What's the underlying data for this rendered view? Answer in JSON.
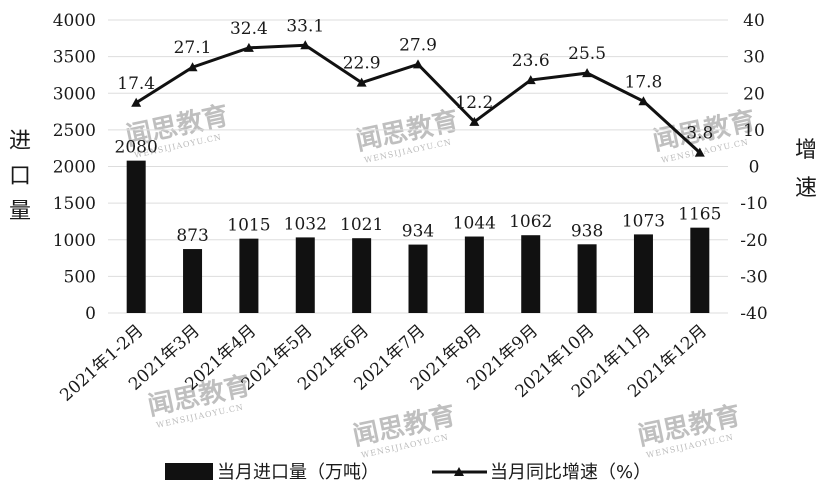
{
  "chart_data": {
    "type": "bar",
    "categories": [
      "2021年1-2月",
      "2021年3月",
      "2021年4月",
      "2021年5月",
      "2021年6月",
      "2021年7月",
      "2021年8月",
      "2021年9月",
      "2021年10月",
      "2021年11月",
      "2021年12月"
    ],
    "series": [
      {
        "name": "当月进口量（万吨）",
        "type": "bar",
        "axis": "left",
        "values": [
          2080,
          873,
          1015,
          1032,
          1021,
          934,
          1044,
          1062,
          938,
          1073,
          1165
        ],
        "color": "#111111"
      },
      {
        "name": "当月同比增速（%）",
        "type": "line",
        "axis": "right",
        "values": [
          17.4,
          27.1,
          32.4,
          33.1,
          22.9,
          27.9,
          12.2,
          23.6,
          25.5,
          17.8,
          3.8
        ],
        "color": "#111111"
      }
    ],
    "ylabel_left": "进口量",
    "ylabel_right": "增速",
    "ylim_left": [
      0,
      4000
    ],
    "yticks_left": [
      "0",
      "500",
      "1000",
      "1500",
      "2000",
      "2500",
      "3000",
      "3500",
      "4000"
    ],
    "ylim_right": [
      -40,
      40
    ],
    "yticks_right": [
      "-40",
      "-30",
      "-20",
      "-10",
      "0",
      "10",
      "20",
      "30",
      "40"
    ],
    "grid": true,
    "legend_position": "bottom",
    "watermark_text": [
      "闻思教育",
      "WENSIJIAOYU.CN"
    ]
  }
}
